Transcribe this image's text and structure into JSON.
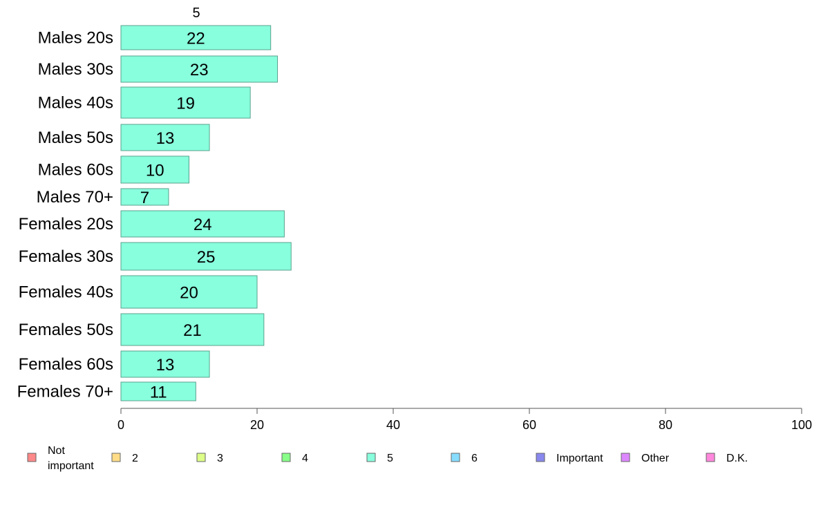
{
  "chart_data": {
    "type": "bar",
    "orientation": "horizontal",
    "stacked": true,
    "categories": [
      "Males 20s",
      "Males 30s",
      "Males 40s",
      "Males 50s",
      "Males 60s",
      "Males 70+",
      "Females 20s",
      "Females 30s",
      "Females 40s",
      "Females 50s",
      "Females 60s",
      "Females 70+"
    ],
    "series_header": "5",
    "series": [
      {
        "name": "5",
        "color": "#88ffdd",
        "values": [
          22,
          23,
          19,
          13,
          10,
          7,
          24,
          25,
          20,
          21,
          13,
          11
        ]
      }
    ],
    "xlim": [
      0,
      100
    ],
    "xticks": [
      0,
      20,
      40,
      60,
      80,
      100
    ],
    "grid": false,
    "legend": {
      "placement": "bottom",
      "items": [
        {
          "label": "Not important",
          "label_lines": [
            "Not",
            "important"
          ],
          "color": "#ff8888"
        },
        {
          "label": "2",
          "label_lines": [
            "2"
          ],
          "color": "#ffdd88"
        },
        {
          "label": "3",
          "label_lines": [
            "3"
          ],
          "color": "#ddff88"
        },
        {
          "label": "4",
          "label_lines": [
            "4"
          ],
          "color": "#88ff88"
        },
        {
          "label": "5",
          "label_lines": [
            "5"
          ],
          "color": "#88ffdd"
        },
        {
          "label": "6",
          "label_lines": [
            "6"
          ],
          "color": "#88ddff"
        },
        {
          "label": "Important",
          "label_lines": [
            "Important"
          ],
          "color": "#8888ee"
        },
        {
          "label": "Other",
          "label_lines": [
            "Other"
          ],
          "color": "#dd88ff"
        },
        {
          "label": "D.K.",
          "label_lines": [
            "D.K."
          ],
          "color": "#ff88dd"
        }
      ]
    }
  }
}
